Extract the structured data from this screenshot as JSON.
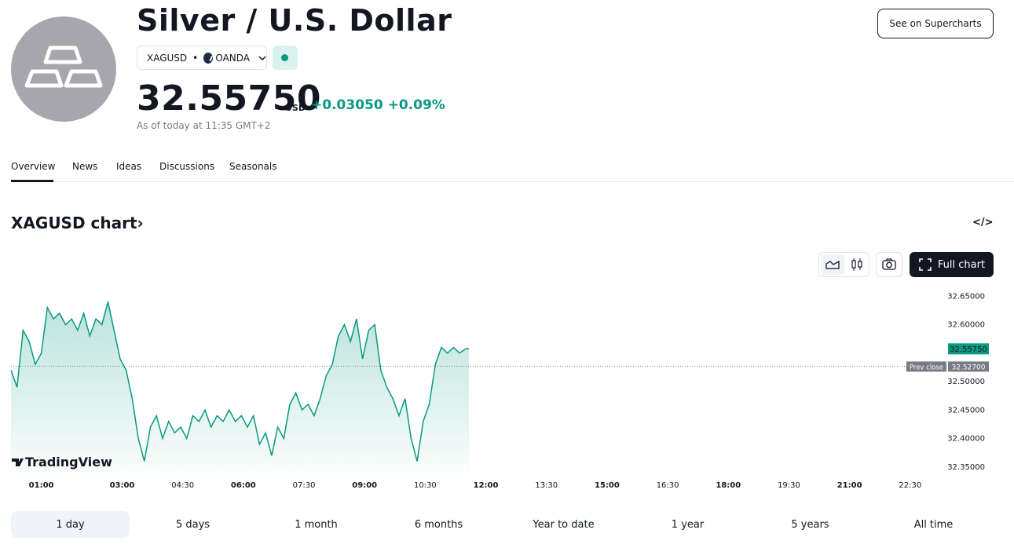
{
  "header": {
    "title": "Silver / U.S. Dollar",
    "symbol": "XAGUSD",
    "separator": "•",
    "broker": "OANDA",
    "price": "32.55750",
    "currency": "USD",
    "change_abs": "+0.03050",
    "change_pct": "+0.09%",
    "as_of": "As of today at 11:35 GMT+2",
    "supercharts_label": "See on Supercharts",
    "logo_icon": "silver-bars-icon",
    "status": "market-open-dot",
    "accent_color": "#089981"
  },
  "tabs": [
    "Overview",
    "News",
    "Ideas",
    "Discussions",
    "Seasonals"
  ],
  "active_tab": "Overview",
  "chart_section": {
    "heading": "XAGUSD chart",
    "heading_arrow": "›",
    "embed_label": "</>",
    "full_chart_label": "Full chart",
    "branding": "TradingView",
    "prev_close_label": "Prev close",
    "current_label": "32.55750",
    "prev_close_value_label": "32.52700"
  },
  "chart_data": {
    "type": "area",
    "symbol": "XAGUSD",
    "x_ticks": [
      "01:00",
      "03:00",
      "04:30",
      "06:00",
      "07:30",
      "09:00",
      "10:30",
      "12:00",
      "13:30",
      "15:00",
      "16:30",
      "18:00",
      "19:30",
      "21:00",
      "22:30"
    ],
    "bold_x_ticks": [
      "01:00",
      "03:00",
      "06:00",
      "09:00",
      "12:00",
      "15:00",
      "18:00",
      "21:00"
    ],
    "y_ticks": [
      "32.65000",
      "32.60000",
      "32.50000",
      "32.45000",
      "32.40000",
      "32.35000"
    ],
    "ylim": [
      32.34,
      32.66
    ],
    "x_range_hours": [
      0.25,
      23.3
    ],
    "prev_close": 32.527,
    "last": 32.5575,
    "line_color": "#089981",
    "series": [
      {
        "x": [
          0.25,
          0.4,
          0.55,
          0.7,
          0.85,
          1.0,
          1.15,
          1.3,
          1.45,
          1.6,
          1.75,
          1.9,
          2.05,
          2.2,
          2.35,
          2.5,
          2.65,
          2.8,
          2.95,
          3.1,
          3.25,
          3.4,
          3.55,
          3.7,
          3.85,
          4.0,
          4.15,
          4.3,
          4.45,
          4.6,
          4.75,
          4.9,
          5.05,
          5.2,
          5.35,
          5.5,
          5.65,
          5.8,
          5.95,
          6.1,
          6.25,
          6.4,
          6.55,
          6.7,
          6.85,
          7.0,
          7.15,
          7.3,
          7.45,
          7.6,
          7.75,
          7.9,
          8.05,
          8.2,
          8.35,
          8.5,
          8.65,
          8.8,
          8.95,
          9.1,
          9.25,
          9.4,
          9.55,
          9.7,
          9.85,
          10.0,
          10.15,
          10.3,
          10.45,
          10.6,
          10.75,
          10.9,
          11.05,
          11.2,
          11.35,
          11.5,
          11.58
        ],
        "y": [
          32.52,
          32.49,
          32.59,
          32.57,
          32.53,
          32.55,
          32.63,
          32.61,
          32.62,
          32.6,
          32.61,
          32.59,
          32.62,
          32.58,
          32.61,
          32.6,
          32.64,
          32.59,
          32.54,
          32.52,
          32.47,
          32.4,
          32.36,
          32.42,
          32.44,
          32.4,
          32.43,
          32.41,
          32.42,
          32.4,
          32.44,
          32.43,
          32.45,
          32.42,
          32.44,
          32.43,
          32.45,
          32.43,
          32.44,
          32.42,
          32.44,
          32.39,
          32.41,
          32.37,
          32.42,
          32.4,
          32.46,
          32.48,
          32.45,
          32.46,
          32.44,
          32.47,
          32.51,
          32.53,
          32.58,
          32.6,
          32.57,
          32.61,
          32.54,
          32.59,
          32.6,
          32.52,
          32.49,
          32.47,
          32.44,
          32.47,
          32.4,
          32.36,
          32.43,
          32.46,
          32.53,
          32.56,
          32.55,
          32.56,
          32.55,
          32.5575,
          32.5575
        ]
      }
    ]
  },
  "ranges": [
    "1 day",
    "5 days",
    "1 month",
    "6 months",
    "Year to date",
    "1 year",
    "5 years",
    "All time"
  ],
  "active_range": "1 day"
}
